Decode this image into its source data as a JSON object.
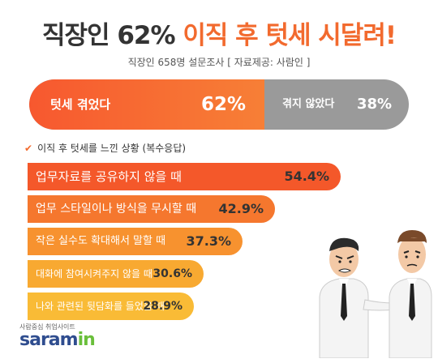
{
  "title": {
    "part1": "직장인 62%",
    "part2": "이직 후 텃세 시달려!"
  },
  "subtitle": "직장인 658명 설문조사 [ 자료제공: 사람인 ]",
  "experience": {
    "experienced_label": "텃세 겪었다",
    "experienced_pct": "62%",
    "not_label": "겪지 않았다",
    "not_pct": "38%",
    "experienced_value": 62,
    "not_value": 38
  },
  "section_heading": "이직 후 텃세를 느낀 상황 (복수응답)",
  "chart_data": [
    {
      "type": "bar",
      "categories": [
        "텃세 겪었다",
        "겪지 않았다"
      ],
      "values": [
        62,
        38
      ],
      "unit": "%"
    },
    {
      "type": "bar",
      "title": "이직 후 텃세를 느낀 상황 (복수응답)",
      "categories": [
        "업무자료를  공유하지 않을 때",
        "업무 스타일이나 방식을 무시할 때",
        "작은 실수도 확대해서 말할 때",
        "대화에 참여시켜주지 않을 때",
        "나와 관련된 뒷담화를 들었을 때"
      ],
      "values": [
        54.4,
        42.9,
        37.3,
        30.6,
        28.9
      ],
      "value_labels": [
        "54.4%",
        "42.9%",
        "37.3%",
        "30.6%",
        "28.9%"
      ],
      "unit": "%"
    }
  ],
  "bar_colors": [
    "#f4582a",
    "#f5772e",
    "#f7922f",
    "#f8a931",
    "#f9bb36"
  ],
  "logo": {
    "tagline": "사람중심 취업사이트",
    "name": "saram",
    "name_suffix": "in"
  }
}
